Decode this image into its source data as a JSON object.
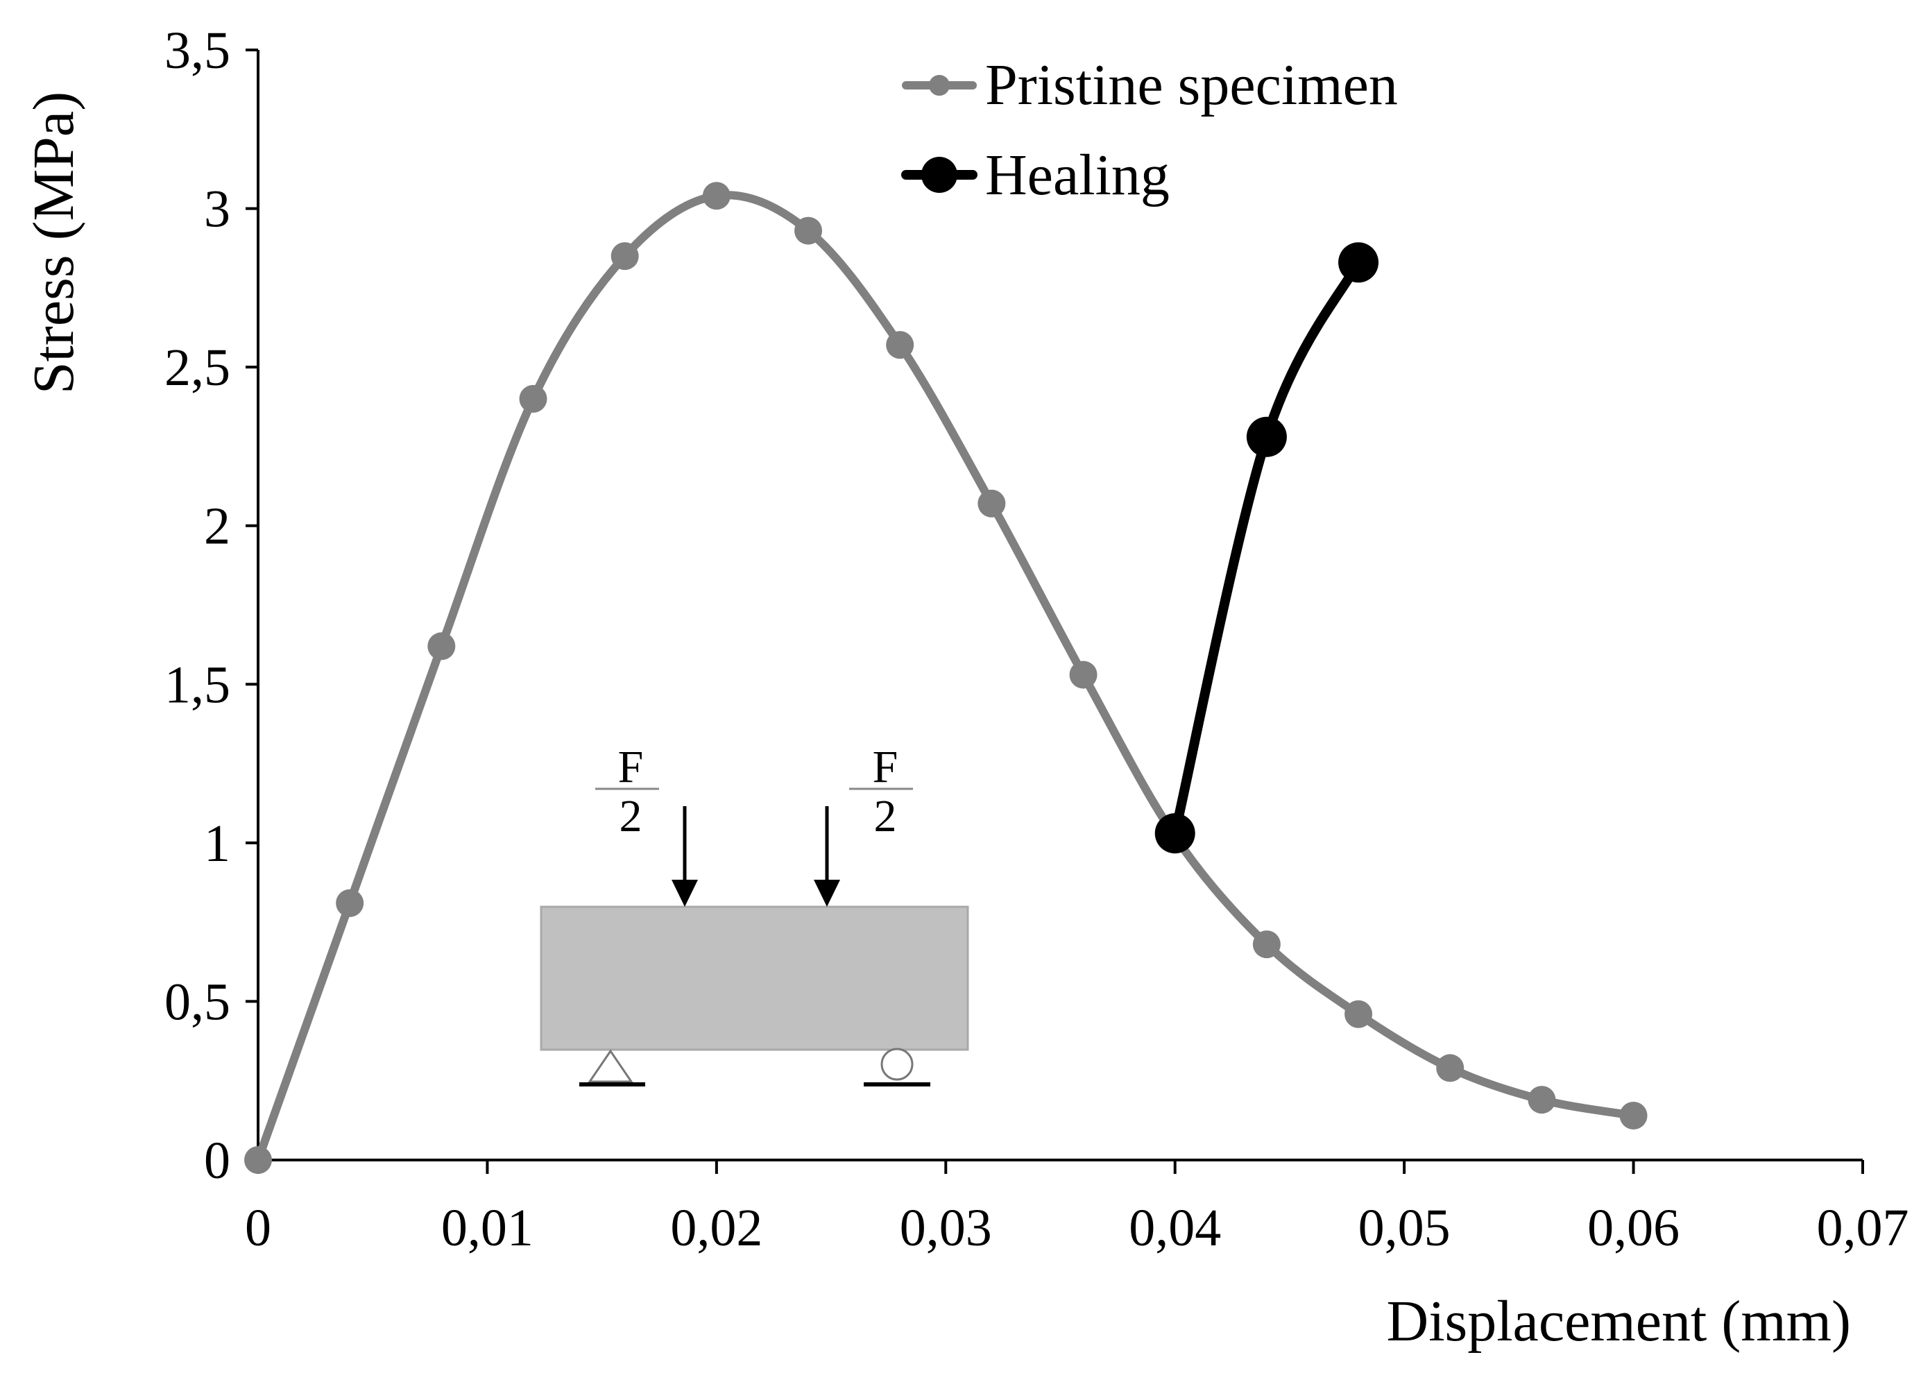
{
  "chart_data": {
    "type": "line",
    "title": "",
    "xlabel": "Displacement (mm)",
    "ylabel": "Stress (MPa)",
    "xlim": [
      0,
      0.07
    ],
    "ylim": [
      0,
      3.5
    ],
    "x_ticks": [
      0,
      0.01,
      0.02,
      0.03,
      0.04,
      0.05,
      0.06,
      0.07
    ],
    "x_tick_labels": [
      "0",
      "0,01",
      "0,02",
      "0,03",
      "0,04",
      "0,05",
      "0,06",
      "0,07"
    ],
    "y_ticks": [
      0,
      0.5,
      1,
      1.5,
      2,
      2.5,
      3,
      3.5
    ],
    "y_tick_labels": [
      "0",
      "0,5",
      "1",
      "1,5",
      "2",
      "2,5",
      "3",
      "3,5"
    ],
    "grid": false,
    "legend": "top-center",
    "series": [
      {
        "name": "Pristine specimen",
        "color": "#808080",
        "marker": "small",
        "x": [
          0,
          0.004,
          0.008,
          0.012,
          0.016,
          0.02,
          0.024,
          0.028,
          0.032,
          0.036,
          0.04,
          0.044,
          0.048,
          0.052,
          0.056,
          0.06
        ],
        "y": [
          0,
          0.81,
          1.62,
          2.4,
          2.85,
          3.04,
          2.93,
          2.57,
          2.07,
          1.53,
          1.02,
          0.68,
          0.46,
          0.29,
          0.19,
          0.14
        ]
      },
      {
        "name": "Healing",
        "color": "#000000",
        "marker": "large",
        "x": [
          0.04,
          0.044,
          0.048
        ],
        "y": [
          1.03,
          2.28,
          2.83
        ]
      }
    ],
    "inset": {
      "description": "four-point bending schematic",
      "load_numerator": "F",
      "load_denominator": "2"
    }
  }
}
